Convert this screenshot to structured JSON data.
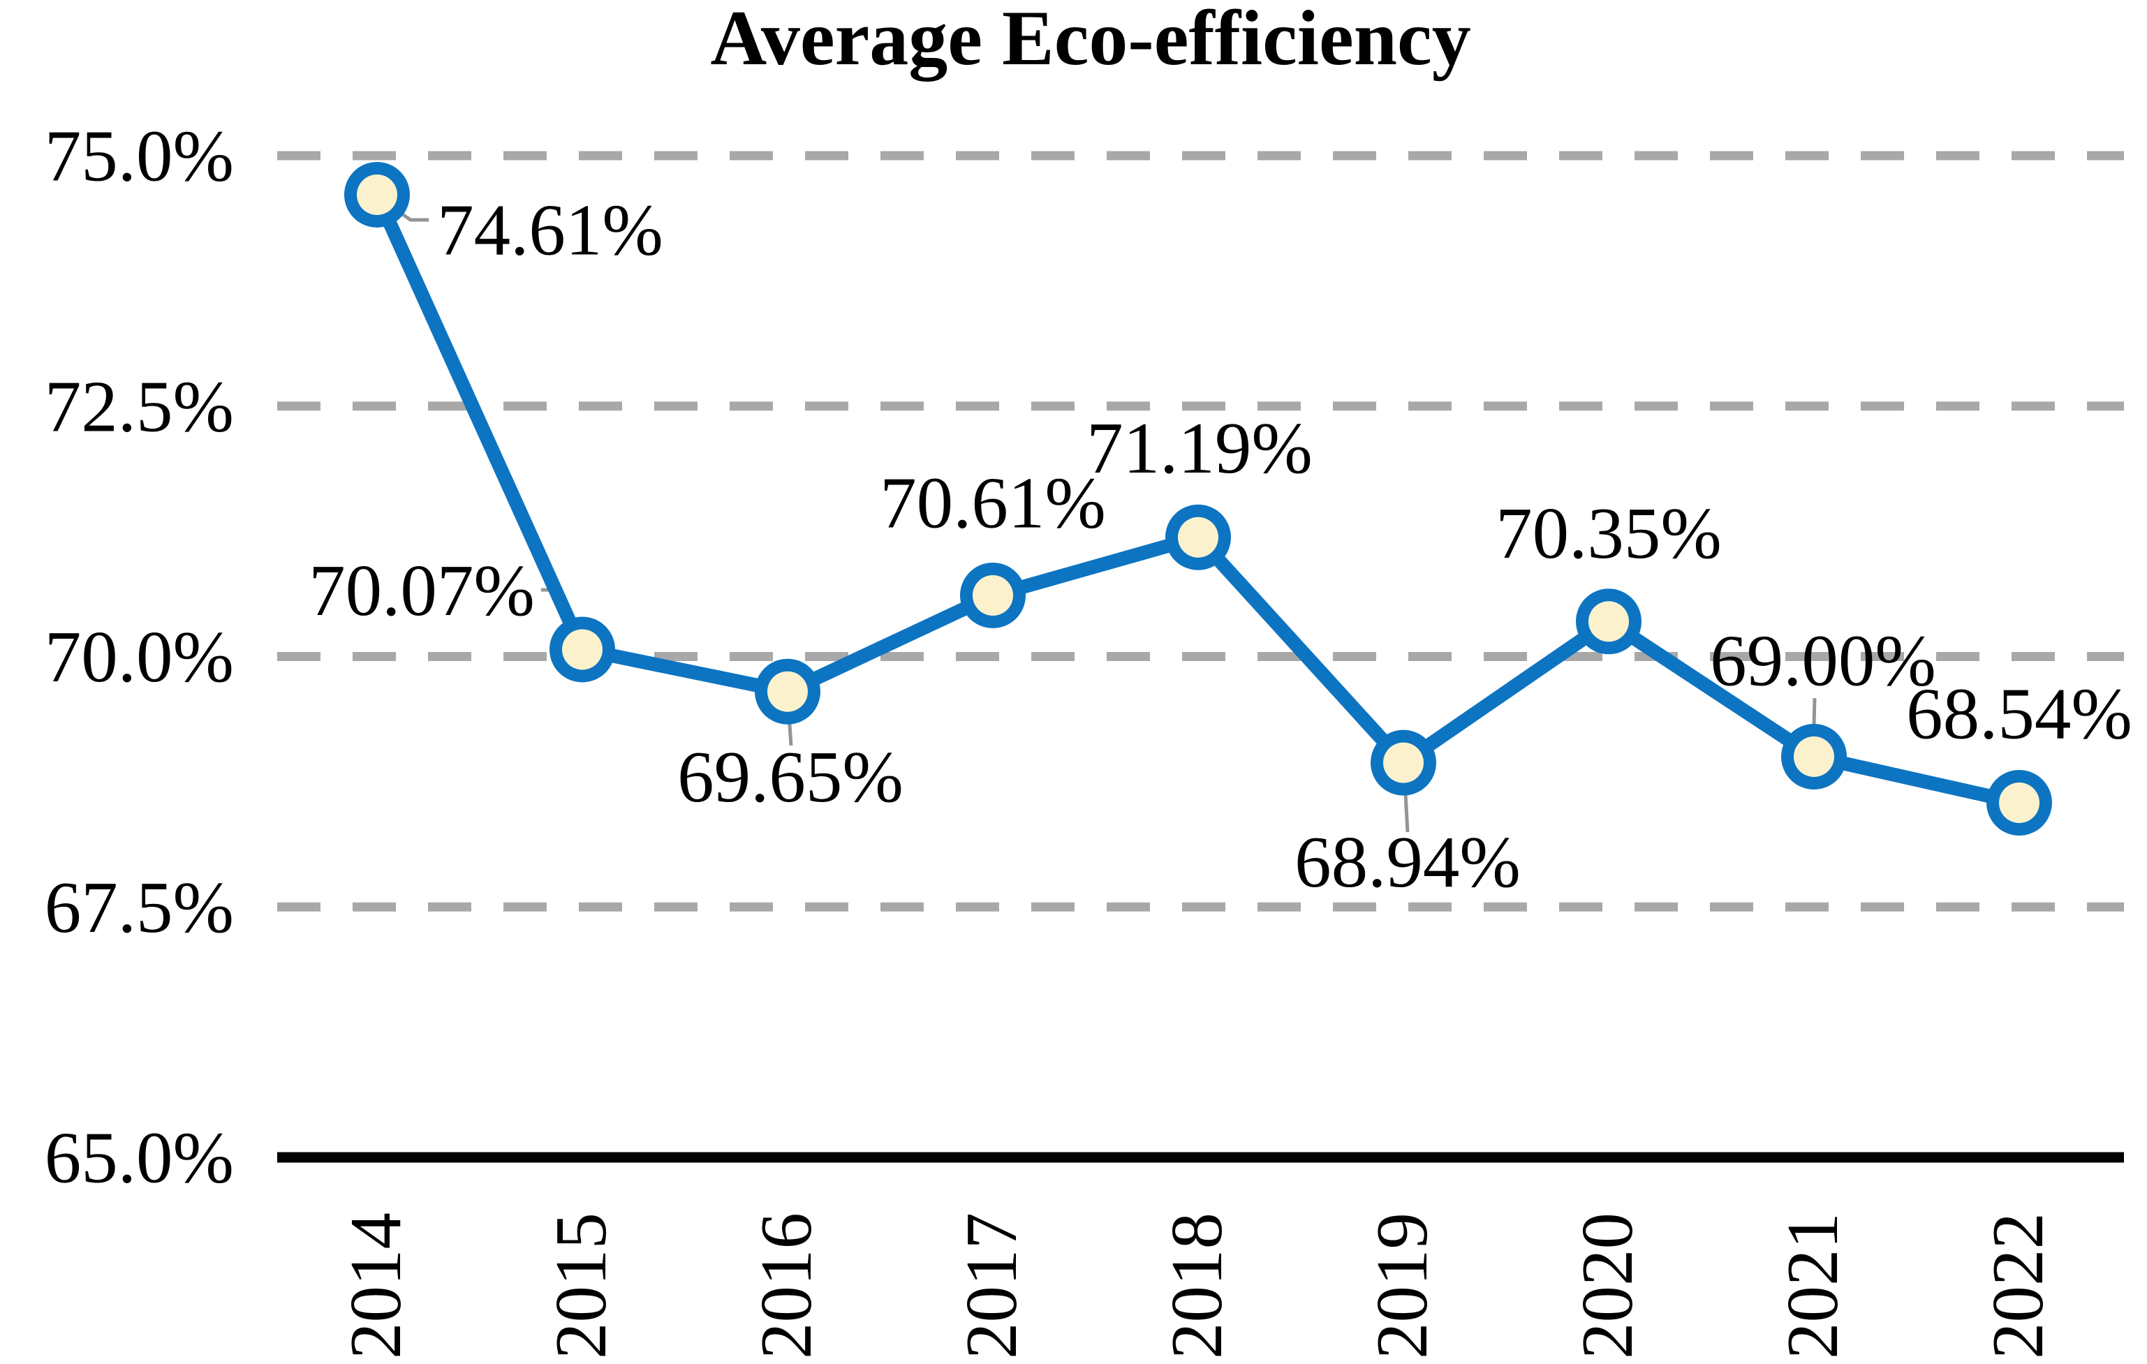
{
  "title": "Average Eco-efficiency",
  "chart_data": {
    "type": "line",
    "title": "Average Eco-efficiency",
    "x": [
      "2014",
      "2015",
      "2016",
      "2017",
      "2018",
      "2019",
      "2020",
      "2021",
      "2022"
    ],
    "series": [
      {
        "name": "Average Eco-efficiency",
        "values": [
          74.61,
          70.07,
          69.65,
          70.61,
          71.19,
          68.94,
          70.35,
          69.0,
          68.54
        ]
      }
    ],
    "point_labels": [
      "74.61%",
      "70.07%",
      "69.65%",
      "70.61%",
      "71.19%",
      "68.94%",
      "70.35%",
      "69.00%",
      "68.54%"
    ],
    "xlabel": "",
    "ylabel": "",
    "ylim": [
      65.0,
      75.0
    ],
    "yticks": [
      {
        "value": 75.0,
        "label": "75.0%"
      },
      {
        "value": 72.5,
        "label": "72.5%"
      },
      {
        "value": 70.0,
        "label": "70.0%"
      },
      {
        "value": 67.5,
        "label": "67.5%"
      },
      {
        "value": 65.0,
        "label": "65.0%"
      }
    ],
    "grid": "horizontal-dashed",
    "legend_position": "none",
    "marker_style": "circle",
    "colors": {
      "line": "#0D74C2",
      "marker_fill": "#FBF2CD",
      "marker_border": "#0D74C2",
      "gridline": "#A8A8A8",
      "axis": "#000000",
      "leader": "#949494",
      "text": "#000000",
      "background": "#FFFFFF"
    }
  }
}
